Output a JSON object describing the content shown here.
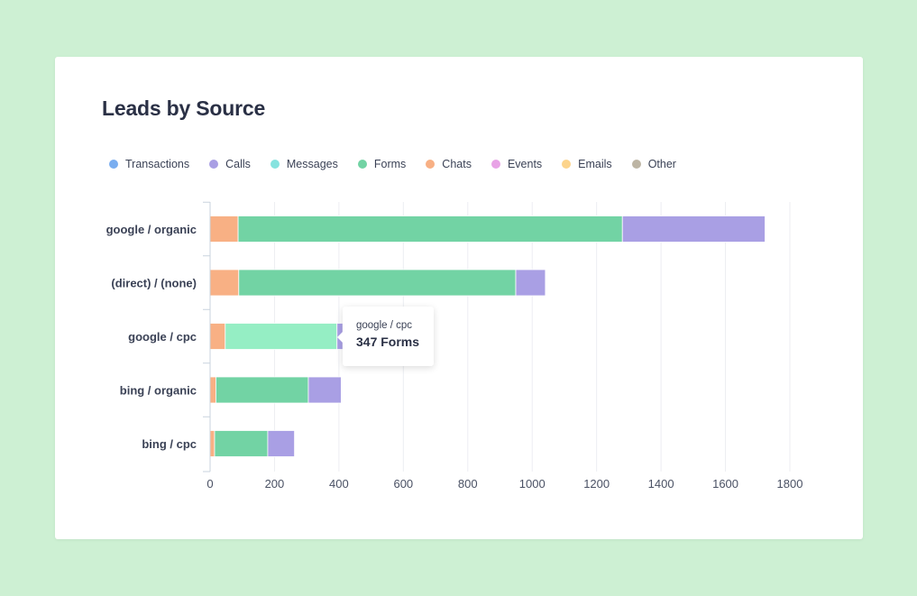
{
  "card": {
    "title": "Leads by Source"
  },
  "legend": [
    {
      "label": "Transactions",
      "color": "#7aaef0"
    },
    {
      "label": "Calls",
      "color": "#a99fe4"
    },
    {
      "label": "Messages",
      "color": "#86e3df"
    },
    {
      "label": "Forms",
      "color": "#72d3a4"
    },
    {
      "label": "Chats",
      "color": "#f8b084"
    },
    {
      "label": "Events",
      "color": "#e8a3e6"
    },
    {
      "label": "Emails",
      "color": "#fcd48c"
    },
    {
      "label": "Other",
      "color": "#bdb5a4"
    }
  ],
  "tooltip": {
    "source": "google / cpc",
    "value_text": "347 Forms"
  },
  "chart_data": {
    "type": "bar",
    "orientation": "horizontal",
    "stacked": true,
    "title": "Leads by Source",
    "categories": [
      "google / organic",
      "(direct) / (none)",
      "google / cpc",
      "bing / organic",
      "bing / cpc"
    ],
    "series": [
      {
        "name": "Chats",
        "color": "#f8b084",
        "values": [
          87,
          89,
          47,
          18,
          14
        ]
      },
      {
        "name": "Forms",
        "color": "#72d3a4",
        "highlight_color": "#95eec4",
        "values": [
          1193,
          860,
          347,
          287,
          165
        ]
      },
      {
        "name": "Calls",
        "color": "#a99fe4",
        "values": [
          443,
          92,
          18,
          102,
          83
        ]
      }
    ],
    "highlighted": {
      "category": "google / cpc",
      "series": "Forms"
    },
    "xlim": [
      0,
      1800
    ],
    "xticks": [
      0,
      200,
      400,
      600,
      800,
      1000,
      1200,
      1400,
      1600,
      1800
    ],
    "grid": true,
    "legend": "top-left"
  }
}
